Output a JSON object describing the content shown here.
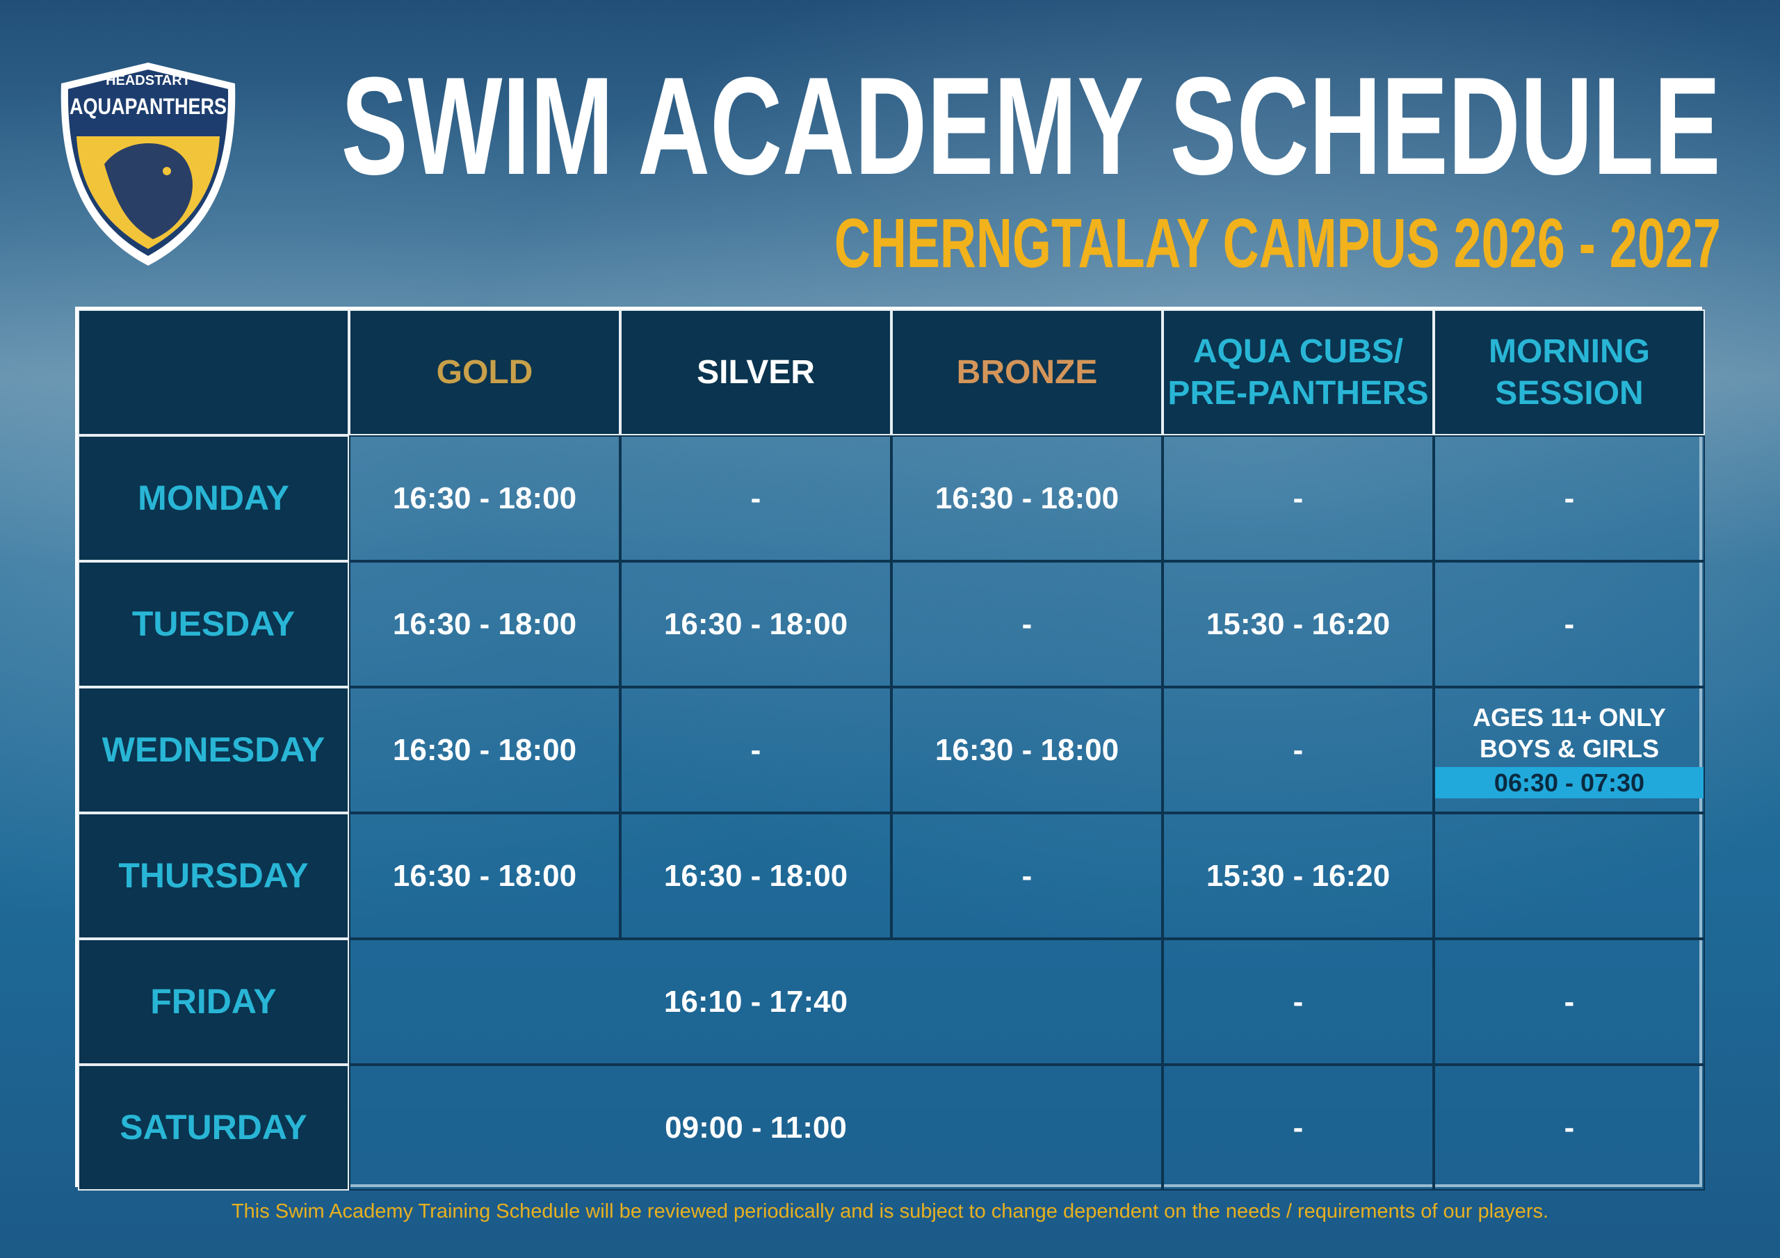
{
  "logo": {
    "top": "HEADSTART",
    "name": "AQUAPANTHERS"
  },
  "header": {
    "title": "SWIM ACADEMY SCHEDULE",
    "subtitle": "CHERNGTALAY CAMPUS 2026 - 2027"
  },
  "table": {
    "columns": [
      [
        "GOLD"
      ],
      [
        "SILVER"
      ],
      [
        "BRONZE"
      ],
      [
        "AQUA CUBS/",
        "PRE-PANTHERS"
      ],
      [
        "MORNING",
        "SESSION"
      ]
    ],
    "rows": [
      {
        "day": "MONDAY",
        "cells": [
          "16:30 - 18:00",
          "-",
          "16:30 - 18:00",
          "-",
          "-"
        ]
      },
      {
        "day": "TUESDAY",
        "cells": [
          "16:30 - 18:00",
          "16:30 - 18:00",
          "-",
          "15:30 - 16:20",
          "-"
        ]
      },
      {
        "day": "WEDNESDAY",
        "cells": [
          "16:30 - 18:00",
          "-",
          "16:30 - 18:00",
          "-",
          [
            "AGES 11+ ONLY",
            "BOYS & GIRLS",
            "06:30 - 07:30"
          ]
        ]
      },
      {
        "day": "THURSDAY",
        "cells": [
          "16:30 - 18:00",
          "16:30 - 18:00",
          "-",
          "15:30 - 16:20",
          null
        ]
      },
      {
        "day": "FRIDAY",
        "cells": [
          "16:10 - 17:40",
          "-",
          "-"
        ]
      },
      {
        "day": "SATURDAY",
        "cells": [
          "09:00 - 11:00",
          "-",
          "-"
        ]
      }
    ]
  },
  "footer": "This Swim Academy Training Schedule will be reviewed periodically and is subject to change dependent on the needs / requirements of our players."
}
